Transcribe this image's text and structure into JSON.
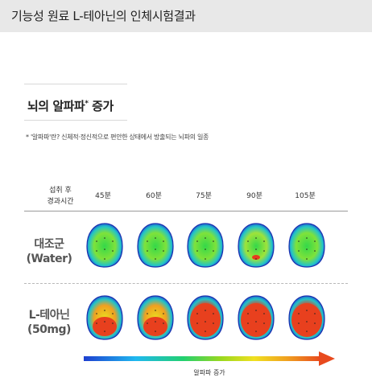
{
  "header": {
    "title": "기능성 원료 L-테아닌의 인체시험결과"
  },
  "section": {
    "title": "뇌의 알파파",
    "title_mark": "*",
    "title_suffix": " 증가"
  },
  "note": {
    "text": "* '알파파'란? 신체적·정신적으로 편안한 상태에서 방출되는 뇌파의 일종"
  },
  "table": {
    "row_header": [
      "섭취 후",
      "경과시간"
    ],
    "columns": [
      "45분",
      "60분",
      "75분",
      "90분",
      "105분"
    ],
    "groups": [
      {
        "label": [
          "대조군",
          "(Water)"
        ],
        "maps": [
          {
            "time": "45분",
            "activity": "low"
          },
          {
            "time": "60분",
            "activity": "low"
          },
          {
            "time": "75분",
            "activity": "low"
          },
          {
            "time": "90분",
            "activity": "low-mid"
          },
          {
            "time": "105분",
            "activity": "low"
          }
        ]
      },
      {
        "label": [
          "L-테아닌",
          "(50mg)"
        ],
        "maps": [
          {
            "time": "45분",
            "activity": "high"
          },
          {
            "time": "60분",
            "activity": "high"
          },
          {
            "time": "75분",
            "activity": "very-high"
          },
          {
            "time": "90분",
            "activity": "very-high"
          },
          {
            "time": "105분",
            "activity": "very-high"
          }
        ]
      }
    ]
  },
  "scale": {
    "label": "알파파 증가",
    "colors": [
      "#1e3fd0",
      "#1fb8f0",
      "#22d070",
      "#9ad81f",
      "#f0e020",
      "#f0a020",
      "#e84a1e"
    ]
  }
}
